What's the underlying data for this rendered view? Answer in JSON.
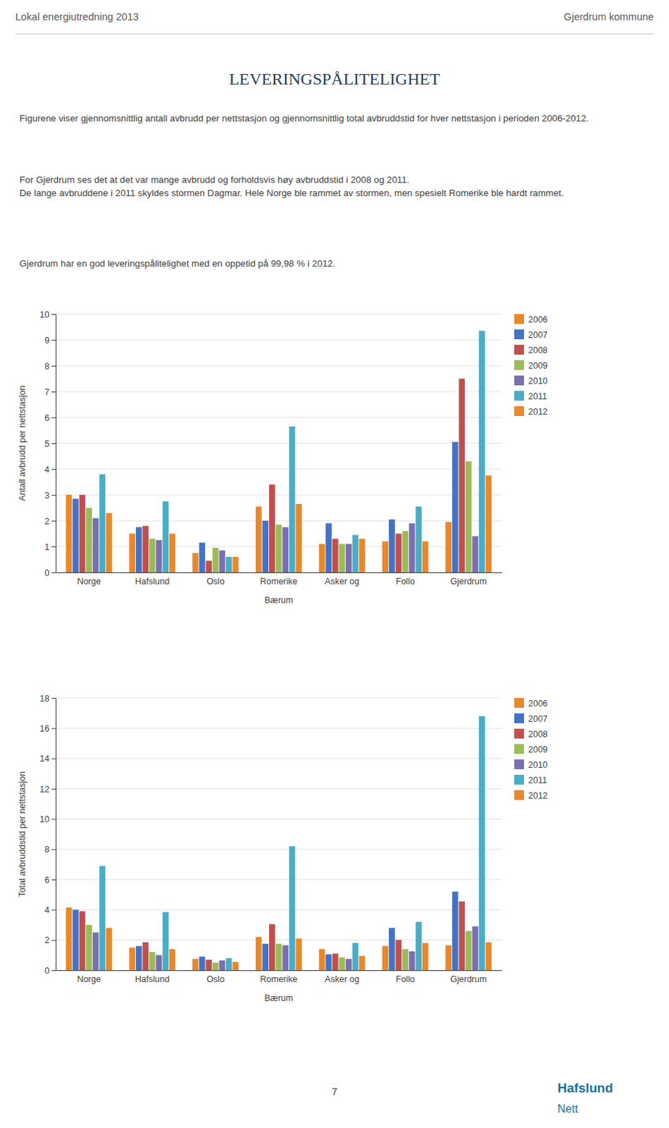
{
  "header_left": "Lokal energiutredning 2013",
  "header_right": "Gjerdrum kommune",
  "title": "LEVERINGSPÅLITELIGHET",
  "paragraphs": [
    "Figurene viser gjennomsnittlig antall avbrudd per nettstasjon og gjennomsnittlig total avbruddstid for hver nettstasjon i perioden 2006-2012.",
    "For Gjerdrum ses det at det var mange avbrudd og forholdsvis høy avbruddstid i 2008 og 2011.\nDe lange avbruddene i 2011 skyldes stormen Dagmar. Hele Norge ble rammet av stormen, men spesielt Romerike ble hardt rammet.",
    "Gjerdrum har en god leveringspålitelighet med en oppetid på 99,98 % i 2012."
  ],
  "page_number": "7",
  "logo": [
    "Hafslund",
    "Nett"
  ],
  "chart_data": [
    {
      "type": "bar",
      "categories": [
        "Norge",
        "Hafslund",
        "Oslo",
        "Romerike",
        "Asker og",
        "Follo",
        "Gjerdrum"
      ],
      "xlabel": "Bærum",
      "ylabel": "Antall avbrudd per nettstasjon",
      "ylim": [
        0,
        10
      ],
      "yticks": [
        0,
        1,
        2,
        3,
        4,
        5,
        6,
        7,
        8,
        9,
        10
      ],
      "grid": true,
      "legend": "right",
      "series": [
        {
          "name": "2006",
          "color": "#E8882A",
          "values": [
            3.0,
            1.5,
            0.75,
            2.55,
            1.1,
            1.2,
            1.95
          ]
        },
        {
          "name": "2007",
          "color": "#4472C4",
          "values": [
            2.85,
            1.75,
            1.15,
            2.0,
            1.9,
            2.05,
            5.05
          ]
        },
        {
          "name": "2008",
          "color": "#C0504D",
          "values": [
            3.0,
            1.8,
            0.45,
            3.4,
            1.3,
            1.5,
            7.5
          ]
        },
        {
          "name": "2009",
          "color": "#9BBB59",
          "values": [
            2.5,
            1.3,
            0.95,
            1.85,
            1.1,
            1.6,
            4.3
          ]
        },
        {
          "name": "2010",
          "color": "#7B6FAE",
          "values": [
            2.1,
            1.25,
            0.85,
            1.75,
            1.1,
            1.9,
            1.4
          ]
        },
        {
          "name": "2011",
          "color": "#4BACC6",
          "values": [
            3.8,
            2.75,
            0.6,
            5.65,
            1.45,
            2.55,
            9.35
          ]
        },
        {
          "name": "2012",
          "color": "#E8882A",
          "values": [
            2.3,
            1.5,
            0.6,
            2.65,
            1.3,
            1.2,
            3.75
          ]
        }
      ]
    },
    {
      "type": "bar",
      "categories": [
        "Norge",
        "Hafslund",
        "Oslo",
        "Romerike",
        "Asker og",
        "Follo",
        "Gjerdrum"
      ],
      "xlabel": "Bærum",
      "ylabel": "Total avbruddstid per nettstasjon",
      "ylim": [
        0,
        18
      ],
      "yticks": [
        0,
        2,
        4,
        6,
        8,
        10,
        12,
        14,
        16,
        18
      ],
      "grid": true,
      "legend": "right",
      "series": [
        {
          "name": "2006",
          "color": "#E8882A",
          "values": [
            4.15,
            1.5,
            0.75,
            2.2,
            1.4,
            1.6,
            1.65
          ]
        },
        {
          "name": "2007",
          "color": "#4472C4",
          "values": [
            4.0,
            1.6,
            0.9,
            1.75,
            1.05,
            2.8,
            5.2
          ]
        },
        {
          "name": "2008",
          "color": "#C0504D",
          "values": [
            3.9,
            1.85,
            0.7,
            3.05,
            1.1,
            2.0,
            4.55
          ]
        },
        {
          "name": "2009",
          "color": "#9BBB59",
          "values": [
            3.0,
            1.2,
            0.5,
            1.75,
            0.85,
            1.4,
            2.6
          ]
        },
        {
          "name": "2010",
          "color": "#7B6FAE",
          "values": [
            2.5,
            1.0,
            0.65,
            1.65,
            0.75,
            1.25,
            2.9
          ]
        },
        {
          "name": "2011",
          "color": "#4BACC6",
          "values": [
            6.9,
            3.85,
            0.8,
            8.2,
            1.8,
            3.2,
            16.8
          ]
        },
        {
          "name": "2012",
          "color": "#E8882A",
          "values": [
            2.8,
            1.4,
            0.55,
            2.1,
            0.95,
            1.8,
            1.85
          ]
        }
      ]
    }
  ]
}
